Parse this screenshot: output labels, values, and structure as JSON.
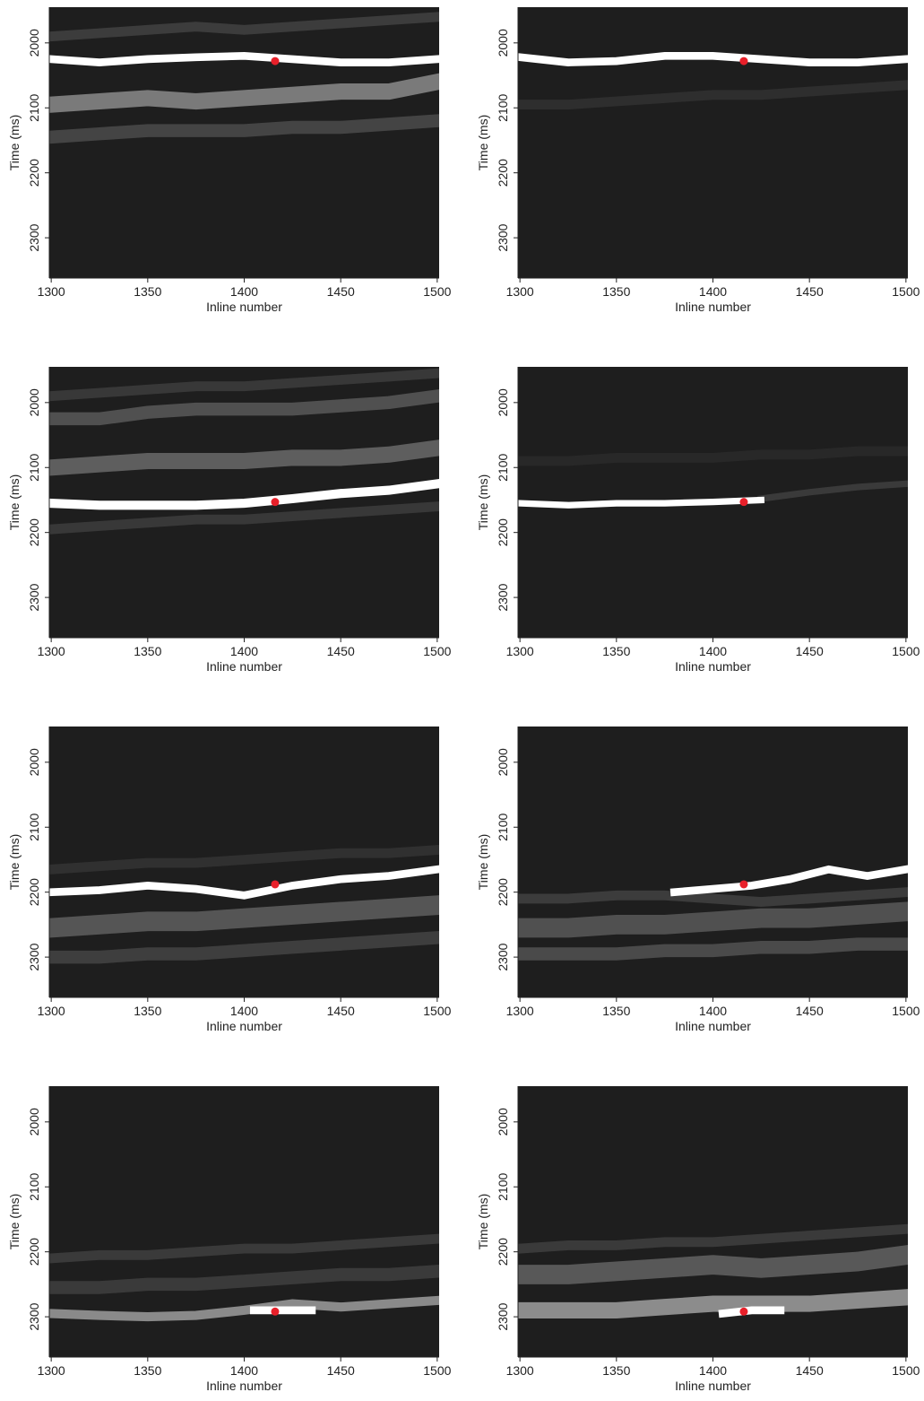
{
  "chart_data": [
    {
      "type": "heatmap",
      "xlabel": "Inline number",
      "ylabel": "Time (ms)",
      "xlim": [
        1299,
        1501
      ],
      "ylim": [
        1945,
        2362
      ],
      "invert_y": true,
      "xticks": [
        1300,
        1350,
        1400,
        1450,
        1500
      ],
      "yticks": [
        2000,
        2100,
        2200,
        2300
      ],
      "background": "#1e1e1e",
      "ridges": [
        {
          "x": [
            1300,
            1325,
            1350,
            1375,
            1400,
            1425,
            1450,
            1475,
            1500
          ],
          "values": [
            1990,
            1985,
            1980,
            1975,
            1980,
            1975,
            1970,
            1965,
            1960
          ],
          "thickness": 15,
          "color": "#3c3c3c"
        },
        {
          "x": [
            1300,
            1325,
            1350,
            1375,
            1400,
            1425,
            1450,
            1475,
            1500
          ],
          "values": [
            2145,
            2140,
            2135,
            2135,
            2135,
            2130,
            2130,
            2125,
            2120
          ],
          "thickness": 20,
          "color": "#444444"
        },
        {
          "x": [
            1300,
            1325,
            1350,
            1375,
            1400,
            1425,
            1450,
            1475,
            1500
          ],
          "values": [
            2095,
            2090,
            2085,
            2090,
            2085,
            2080,
            2075,
            2075,
            2060
          ],
          "thickness": 25,
          "color": "#7a7a7a"
        },
        {
          "x": [
            1300,
            1325,
            1350,
            1375,
            1400,
            1425,
            1450,
            1475,
            1500
          ],
          "values": [
            2025,
            2030,
            2025,
            2022,
            2020,
            2025,
            2030,
            2030,
            2025
          ],
          "thickness": 12,
          "color": "#ffffff"
        }
      ],
      "point": {
        "x": 1416,
        "y": 2028,
        "color": "#e8202a"
      }
    },
    {
      "type": "heatmap",
      "xlabel": "Inline number",
      "ylabel": "Time (ms)",
      "xlim": [
        1299,
        1501
      ],
      "ylim": [
        1945,
        2362
      ],
      "invert_y": true,
      "xticks": [
        1300,
        1350,
        1400,
        1450,
        1500
      ],
      "yticks": [
        2000,
        2100,
        2200,
        2300
      ],
      "background": "#1e1e1e",
      "ridges": [
        {
          "x": [
            1300,
            1325,
            1350,
            1375,
            1400,
            1425,
            1450,
            1475,
            1500
          ],
          "values": [
            2095,
            2095,
            2090,
            2085,
            2080,
            2080,
            2075,
            2070,
            2065
          ],
          "thickness": 15,
          "color": "#2e2e2e"
        },
        {
          "x": [
            1300,
            1325,
            1350,
            1375,
            1400,
            1425,
            1450,
            1475,
            1500
          ],
          "values": [
            2022,
            2030,
            2028,
            2020,
            2020,
            2025,
            2030,
            2030,
            2025
          ],
          "thickness": 12,
          "color": "#ffffff"
        }
      ],
      "point": {
        "x": 1416,
        "y": 2028,
        "color": "#e8202a"
      }
    },
    {
      "type": "heatmap",
      "xlabel": "Inline number",
      "ylabel": "Time (ms)",
      "xlim": [
        1299,
        1501
      ],
      "ylim": [
        1945,
        2362
      ],
      "invert_y": true,
      "xticks": [
        1300,
        1350,
        1400,
        1450,
        1500
      ],
      "yticks": [
        2000,
        2100,
        2200,
        2300
      ],
      "background": "#1e1e1e",
      "ridges": [
        {
          "x": [
            1300,
            1325,
            1350,
            1375,
            1400,
            1425,
            1450,
            1475,
            1500
          ],
          "values": [
            1990,
            1985,
            1980,
            1975,
            1975,
            1970,
            1965,
            1960,
            1955
          ],
          "thickness": 15,
          "color": "#383838"
        },
        {
          "x": [
            1300,
            1325,
            1350,
            1375,
            1400,
            1425,
            1450,
            1475,
            1500
          ],
          "values": [
            2195,
            2190,
            2185,
            2180,
            2180,
            2175,
            2170,
            2165,
            2160
          ],
          "thickness": 15,
          "color": "#383838"
        },
        {
          "x": [
            1300,
            1325,
            1350,
            1375,
            1400,
            1425,
            1450,
            1475,
            1500
          ],
          "values": [
            2025,
            2025,
            2015,
            2010,
            2010,
            2010,
            2005,
            2000,
            1990
          ],
          "thickness": 20,
          "color": "#505050"
        },
        {
          "x": [
            1300,
            1325,
            1350,
            1375,
            1400,
            1425,
            1450,
            1475,
            1500
          ],
          "values": [
            2100,
            2095,
            2090,
            2090,
            2090,
            2085,
            2085,
            2080,
            2070
          ],
          "thickness": 25,
          "color": "#5e5e5e"
        },
        {
          "x": [
            1300,
            1325,
            1350,
            1375,
            1400,
            1425,
            1450,
            1475,
            1500
          ],
          "values": [
            2155,
            2158,
            2158,
            2158,
            2155,
            2148,
            2140,
            2135,
            2125
          ],
          "thickness": 14,
          "color": "#ffffff"
        }
      ],
      "point": {
        "x": 1416,
        "y": 2153,
        "color": "#e8202a"
      }
    },
    {
      "type": "heatmap",
      "xlabel": "Inline number",
      "ylabel": "Time (ms)",
      "xlim": [
        1299,
        1501
      ],
      "ylim": [
        1945,
        2362
      ],
      "invert_y": true,
      "xticks": [
        1300,
        1350,
        1400,
        1450,
        1500
      ],
      "yticks": [
        2000,
        2100,
        2200,
        2300
      ],
      "background": "#1e1e1e",
      "ridges": [
        {
          "x": [
            1300,
            1325,
            1350,
            1375,
            1400,
            1425,
            1450,
            1475,
            1500
          ],
          "values": [
            2090,
            2090,
            2085,
            2085,
            2085,
            2080,
            2080,
            2075,
            2075
          ],
          "thickness": 15,
          "color": "#282828"
        },
        {
          "x": [
            1425,
            1450,
            1475,
            1500
          ],
          "values": [
            2148,
            2138,
            2130,
            2125
          ],
          "thickness": 10,
          "color": "#3a3a3a"
        },
        {
          "x": [
            1300,
            1325,
            1350,
            1375,
            1400,
            1425
          ],
          "values": [
            2155,
            2158,
            2155,
            2155,
            2153,
            2150
          ],
          "thickness": 10,
          "color": "#ffffff"
        }
      ],
      "point": {
        "x": 1416,
        "y": 2153,
        "color": "#e8202a"
      }
    },
    {
      "type": "heatmap",
      "xlabel": "Inline number",
      "ylabel": "Time (ms)",
      "xlim": [
        1299,
        1501
      ],
      "ylim": [
        1945,
        2362
      ],
      "invert_y": true,
      "xticks": [
        1300,
        1350,
        1400,
        1450,
        1500
      ],
      "yticks": [
        2000,
        2100,
        2200,
        2300
      ],
      "background": "#1e1e1e",
      "ridges": [
        {
          "x": [
            1300,
            1325,
            1350,
            1375,
            1400,
            1425,
            1450,
            1475,
            1500
          ],
          "values": [
            2165,
            2160,
            2155,
            2155,
            2150,
            2145,
            2140,
            2140,
            2135
          ],
          "thickness": 15,
          "color": "#303030"
        },
        {
          "x": [
            1300,
            1325,
            1350,
            1375,
            1400,
            1425,
            1450,
            1475,
            1500
          ],
          "values": [
            2300,
            2300,
            2295,
            2295,
            2290,
            2285,
            2280,
            2275,
            2270
          ],
          "thickness": 20,
          "color": "#3e3e3e"
        },
        {
          "x": [
            1300,
            1325,
            1350,
            1375,
            1400,
            1425,
            1450,
            1475,
            1500
          ],
          "values": [
            2255,
            2250,
            2245,
            2245,
            2240,
            2235,
            2230,
            2225,
            2220
          ],
          "thickness": 30,
          "color": "#555555"
        },
        {
          "x": [
            1300,
            1325,
            1350,
            1375,
            1400,
            1425,
            1450,
            1475,
            1500
          ],
          "values": [
            2200,
            2197,
            2190,
            2195,
            2205,
            2190,
            2180,
            2175,
            2165
          ],
          "thickness": 12,
          "color": "#ffffff"
        }
      ],
      "point": {
        "x": 1416,
        "y": 2188,
        "color": "#e8202a"
      }
    },
    {
      "type": "heatmap",
      "xlabel": "Inline number",
      "ylabel": "Time (ms)",
      "xlim": [
        1299,
        1501
      ],
      "ylim": [
        1945,
        2362
      ],
      "invert_y": true,
      "xticks": [
        1300,
        1350,
        1400,
        1450,
        1500
      ],
      "yticks": [
        2000,
        2100,
        2200,
        2300
      ],
      "background": "#1e1e1e",
      "ridges": [
        {
          "x": [
            1300,
            1325,
            1350,
            1375,
            1400,
            1425,
            1450,
            1475,
            1500
          ],
          "values": [
            2295,
            2295,
            2295,
            2290,
            2290,
            2285,
            2285,
            2280,
            2280
          ],
          "thickness": 20,
          "color": "#4a4a4a"
        },
        {
          "x": [
            1300,
            1325,
            1350,
            1375,
            1400,
            1425,
            1450,
            1475,
            1500
          ],
          "values": [
            2255,
            2255,
            2250,
            2250,
            2245,
            2240,
            2240,
            2235,
            2230
          ],
          "thickness": 30,
          "color": "#505050"
        },
        {
          "x": [
            1300,
            1325,
            1350,
            1375,
            1400,
            1425,
            1450,
            1475,
            1500
          ],
          "values": [
            2210,
            2210,
            2205,
            2205,
            2210,
            2215,
            2210,
            2205,
            2200
          ],
          "thickness": 15,
          "color": "#3c3c3c"
        },
        {
          "x": [
            1380,
            1400,
            1420,
            1440,
            1460,
            1480,
            1500
          ],
          "values": [
            2200,
            2195,
            2190,
            2180,
            2165,
            2175,
            2165
          ],
          "thickness": 12,
          "color": "#ffffff"
        }
      ],
      "point": {
        "x": 1416,
        "y": 2188,
        "color": "#e8202a"
      }
    },
    {
      "type": "heatmap",
      "xlabel": "Inline number",
      "ylabel": "Time (ms)",
      "xlim": [
        1299,
        1501
      ],
      "ylim": [
        1945,
        2362
      ],
      "invert_y": true,
      "xticks": [
        1300,
        1350,
        1400,
        1450,
        1500
      ],
      "yticks": [
        2000,
        2100,
        2200,
        2300
      ],
      "background": "#1e1e1e",
      "ridges": [
        {
          "x": [
            1300,
            1325,
            1350,
            1375,
            1400,
            1425,
            1450,
            1475,
            1500
          ],
          "values": [
            2210,
            2205,
            2205,
            2200,
            2195,
            2195,
            2190,
            2185,
            2180
          ],
          "thickness": 15,
          "color": "#3a3a3a"
        },
        {
          "x": [
            1300,
            1325,
            1350,
            1375,
            1400,
            1425,
            1450,
            1475,
            1500
          ],
          "values": [
            2255,
            2255,
            2250,
            2250,
            2245,
            2240,
            2235,
            2235,
            2230
          ],
          "thickness": 20,
          "color": "#3a3a3a"
        },
        {
          "x": [
            1300,
            1325,
            1350,
            1375,
            1400,
            1425,
            1450,
            1475,
            1500
          ],
          "values": [
            2295,
            2298,
            2300,
            2298,
            2290,
            2280,
            2285,
            2280,
            2275
          ],
          "thickness": 14,
          "color": "#8a8a8a"
        },
        {
          "x": [
            1405,
            1420,
            1435
          ],
          "values": [
            2290,
            2290,
            2290
          ],
          "thickness": 12,
          "color": "#ffffff"
        }
      ],
      "point": {
        "x": 1416,
        "y": 2292,
        "color": "#e8202a"
      }
    },
    {
      "type": "heatmap",
      "xlabel": "Inline number",
      "ylabel": "Time (ms)",
      "xlim": [
        1299,
        1501
      ],
      "ylim": [
        1945,
        2362
      ],
      "invert_y": true,
      "xticks": [
        1300,
        1350,
        1400,
        1450,
        1500
      ],
      "yticks": [
        2000,
        2100,
        2200,
        2300
      ],
      "background": "#1e1e1e",
      "ridges": [
        {
          "x": [
            1300,
            1325,
            1350,
            1375,
            1400,
            1425,
            1450,
            1475,
            1500
          ],
          "values": [
            2195,
            2190,
            2190,
            2185,
            2185,
            2180,
            2175,
            2170,
            2165
          ],
          "thickness": 15,
          "color": "#3a3a3a"
        },
        {
          "x": [
            1300,
            1325,
            1350,
            1375,
            1400,
            1425,
            1450,
            1475,
            1500
          ],
          "values": [
            2235,
            2235,
            2230,
            2225,
            2220,
            2225,
            2220,
            2215,
            2205
          ],
          "thickness": 30,
          "color": "#585858"
        },
        {
          "x": [
            1300,
            1325,
            1350,
            1375,
            1400,
            1425,
            1450,
            1475,
            1500
          ],
          "values": [
            2290,
            2290,
            2290,
            2285,
            2280,
            2280,
            2280,
            2275,
            2270
          ],
          "thickness": 25,
          "color": "#8c8c8c"
        },
        {
          "x": [
            1405,
            1420,
            1435
          ],
          "values": [
            2295,
            2290,
            2290
          ],
          "thickness": 12,
          "color": "#ffffff"
        }
      ],
      "point": {
        "x": 1416,
        "y": 2292,
        "color": "#e8202a"
      }
    }
  ]
}
